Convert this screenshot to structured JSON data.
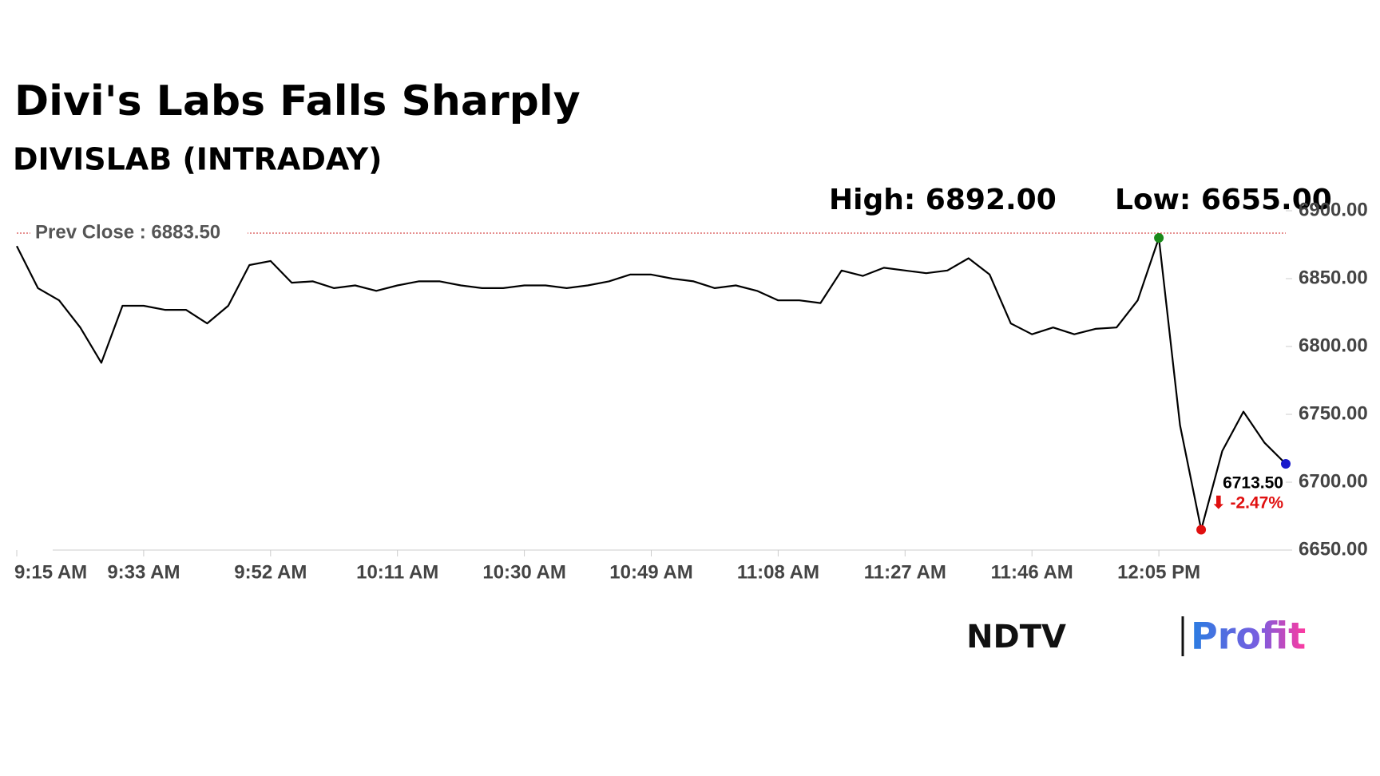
{
  "chart_data": {
    "type": "line",
    "title": "Divi's Labs Falls Sharply",
    "subtitle": "DIVISLAB (INTRADAY)",
    "high_label": "High: 6892.00",
    "low_label": "Low: 6655.00",
    "prev_close": {
      "value": 6883.5,
      "label": "Prev Close : 6883.50",
      "color": "#cc2222"
    },
    "last_label": {
      "value": "6713.50",
      "change": "⬇ -2.47%",
      "change_color": "#e01010"
    },
    "categories": [
      "9:15 AM",
      null,
      null,
      null,
      null,
      null,
      "9:33 AM",
      null,
      null,
      null,
      null,
      null,
      "9:52 AM",
      null,
      null,
      null,
      null,
      null,
      "10:11 AM",
      null,
      null,
      null,
      null,
      null,
      "10:30 AM",
      null,
      null,
      null,
      null,
      null,
      "10:49 AM",
      null,
      null,
      null,
      null,
      null,
      "11:08 AM",
      null,
      null,
      null,
      null,
      null,
      "11:27 AM",
      null,
      null,
      null,
      null,
      null,
      "11:46 AM",
      null,
      null,
      null,
      null,
      null,
      "12:05 PM",
      null,
      null,
      null,
      null,
      null,
      null
    ],
    "series": [
      {
        "color": "#000000",
        "values": [
          6874,
          6843,
          6834,
          6814,
          6788,
          6830,
          6830,
          6827,
          6827,
          6817,
          6830,
          6860,
          6863,
          6847,
          6848,
          6843,
          6845,
          6841,
          6845,
          6848,
          6848,
          6845,
          6843,
          6843,
          6845,
          6845,
          6843,
          6845,
          6848,
          6853,
          6853,
          6850,
          6848,
          6843,
          6845,
          6841,
          6834,
          6834,
          6832,
          6856,
          6852,
          6858,
          6856,
          6854,
          6856,
          6865,
          6853,
          6817,
          6809,
          6814,
          6809,
          6813,
          6814,
          6834,
          6880,
          6742,
          6665,
          6723,
          6752,
          6729,
          6713.5
        ]
      }
    ],
    "markers": {
      "high": {
        "index": 54,
        "color": "#1a8a1a"
      },
      "low": {
        "index": 56,
        "color": "#e01010"
      },
      "last": {
        "index": 60,
        "color": "#1a1acc"
      }
    },
    "ylim": [
      6650,
      6900
    ],
    "yticks": [
      {
        "value": 6650,
        "label": "6650.00"
      },
      {
        "value": 6700,
        "label": "6700.00"
      },
      {
        "value": 6750,
        "label": "6750.00"
      },
      {
        "value": 6800,
        "label": "6800.00"
      },
      {
        "value": 6850,
        "label": "6850.00"
      },
      {
        "value": 6900,
        "label": "6900.00"
      }
    ],
    "grid": false
  },
  "brand": {
    "left": "NDTV",
    "right": "Profit"
  }
}
